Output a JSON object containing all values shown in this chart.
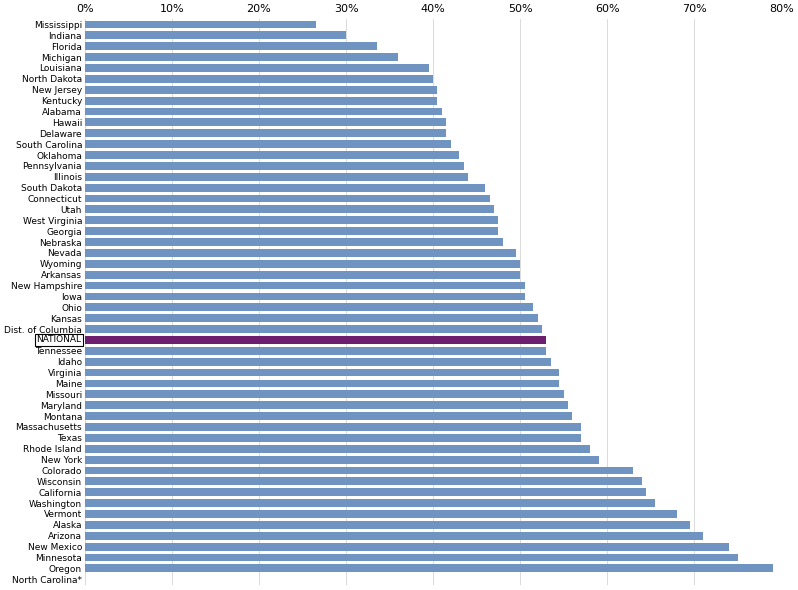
{
  "states": [
    "Mississippi",
    "Indiana",
    "Florida",
    "Michigan",
    "Louisiana",
    "North Dakota",
    "New Jersey",
    "Kentucky",
    "Alabama",
    "Hawaii",
    "Delaware",
    "South Carolina",
    "Oklahoma",
    "Pennsylvania",
    "Illinois",
    "South Dakota",
    "Connecticut",
    "Utah",
    "West Virginia",
    "Georgia",
    "Nebraska",
    "Nevada",
    "Wyoming",
    "Arkansas",
    "New Hampshire",
    "Iowa",
    "Ohio",
    "Kansas",
    "Dist. of Columbia",
    "NATIONAL",
    "Tennessee",
    "Idaho",
    "Virginia",
    "Maine",
    "Missouri",
    "Maryland",
    "Montana",
    "Massachusetts",
    "Texas",
    "Rhode Island",
    "New York",
    "Colorado",
    "Wisconsin",
    "California",
    "Washington",
    "Vermont",
    "Alaska",
    "Arizona",
    "New Mexico",
    "Minnesota",
    "Oregon",
    "North Carolina*"
  ],
  "values": [
    26.5,
    30.0,
    33.5,
    36.0,
    39.5,
    40.0,
    40.5,
    40.5,
    41.0,
    41.5,
    41.5,
    42.0,
    43.0,
    43.5,
    44.0,
    46.0,
    46.5,
    47.0,
    47.5,
    47.5,
    48.0,
    49.5,
    50.0,
    50.0,
    50.5,
    50.5,
    51.5,
    52.0,
    52.5,
    53.0,
    53.0,
    53.5,
    54.5,
    54.5,
    55.0,
    55.5,
    56.0,
    57.0,
    57.0,
    58.0,
    59.0,
    63.0,
    64.0,
    64.5,
    65.5,
    68.0,
    69.5,
    71.0,
    74.0,
    75.0,
    79.0,
    0.0
  ],
  "bar_color": "#7094c1",
  "national_color": "#6b1f6e",
  "national_index": 29,
  "xlim": [
    0,
    80
  ],
  "xticks": [
    0,
    10,
    20,
    30,
    40,
    50,
    60,
    70,
    80
  ],
  "xtick_labels": [
    "0%",
    "10%",
    "20%",
    "30%",
    "40%",
    "50%",
    "60%",
    "70%",
    "80%"
  ],
  "bar_height": 0.72,
  "label_fontsize": 6.5,
  "tick_fontsize": 8.0
}
